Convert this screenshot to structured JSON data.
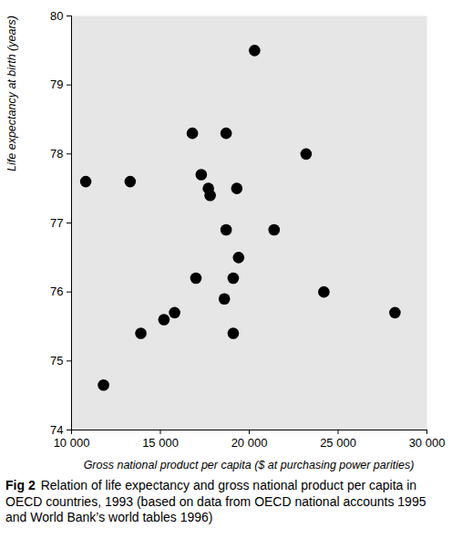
{
  "chart_data": {
    "type": "scatter",
    "figure_number": "Fig 2",
    "title": "Relation of life expectancy and gross national product per capita in OECD countries, 1993 (based on data from OECD national accounts 1995 and World Bank’s world tables 1996)",
    "x_label": "Gross national product per capita ($ at purchasing power parities)",
    "y_label": "Life expectancy at birth (years)",
    "x": [
      10800,
      11800,
      13300,
      13900,
      15200,
      15800,
      16800,
      17000,
      17300,
      17700,
      17800,
      18600,
      18700,
      18700,
      19100,
      19100,
      19300,
      19400,
      20300,
      21400,
      23200,
      24200,
      28200
    ],
    "values": [
      77.6,
      74.65,
      77.6,
      75.4,
      75.6,
      75.7,
      78.3,
      76.2,
      77.7,
      77.5,
      77.4,
      75.9,
      78.3,
      76.9,
      76.2,
      75.4,
      77.5,
      76.5,
      79.5,
      76.9,
      78.0,
      76.0,
      75.7
    ],
    "color": "#000000",
    "marker": "circle",
    "xlim": [
      10000,
      30000
    ],
    "xticks": [
      {
        "value": 10000,
        "label": "10 000"
      },
      {
        "value": 15000,
        "label": "15 000"
      },
      {
        "value": 20000,
        "label": "20 000"
      },
      {
        "value": 25000,
        "label": "25 000"
      },
      {
        "value": 30000,
        "label": "30 000"
      }
    ],
    "ylim": [
      74,
      80
    ],
    "yticks": [
      74,
      75,
      76,
      77,
      78,
      79,
      80
    ],
    "grid": false
  }
}
